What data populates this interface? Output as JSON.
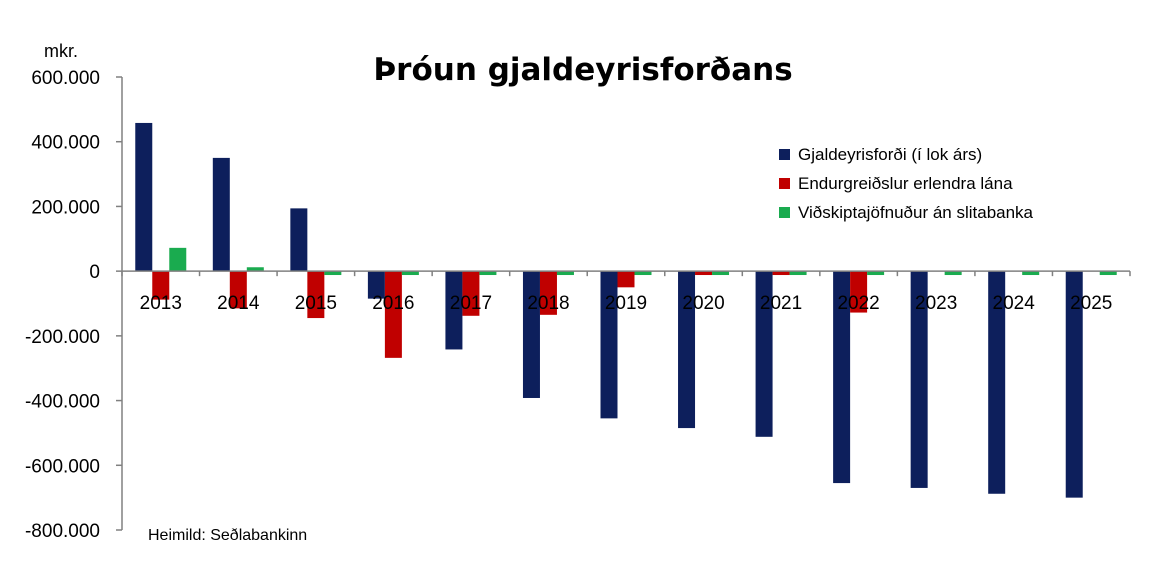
{
  "chart_data": {
    "type": "bar",
    "title": "Þróun gjaldeyrisforðans",
    "ylabel": "mkr.",
    "source": "Heimild: Seðlabankinn",
    "ylim": [
      -800000,
      600000
    ],
    "ytick_values": [
      600000,
      400000,
      200000,
      0,
      -200000,
      -400000,
      -600000,
      -800000
    ],
    "ytick_labels": [
      "600.000",
      "400.000",
      "200.000",
      "0",
      "-200.000",
      "-400.000",
      "-600.000",
      "-800.000"
    ],
    "categories": [
      "2013",
      "2014",
      "2015",
      "2016",
      "2017",
      "2018",
      "2019",
      "2020",
      "2021",
      "2022",
      "2023",
      "2024",
      "2025"
    ],
    "legend_position": "top-right",
    "series": [
      {
        "name": "Gjaldeyrisforði (í lok árs)",
        "color": "#0d1f5c",
        "values": [
          458000,
          350000,
          194000,
          -85000,
          -242000,
          -392000,
          -455000,
          -485000,
          -512000,
          -655000,
          -670000,
          -688000,
          -700000
        ]
      },
      {
        "name": "Endurgreiðslur erlendra lána",
        "color": "#c00000",
        "values": [
          -88000,
          -115000,
          -145000,
          -268000,
          -138000,
          -135000,
          -50000,
          -12000,
          -12000,
          -128000,
          0,
          0,
          0
        ]
      },
      {
        "name": "Viðskiptajöfnuður án slitabanka",
        "color": "#1aab4f",
        "values": [
          72000,
          12000,
          -12000,
          -12000,
          -12000,
          -12000,
          -12000,
          -12000,
          -12000,
          -12000,
          -12000,
          -12000,
          -12000
        ]
      }
    ]
  }
}
